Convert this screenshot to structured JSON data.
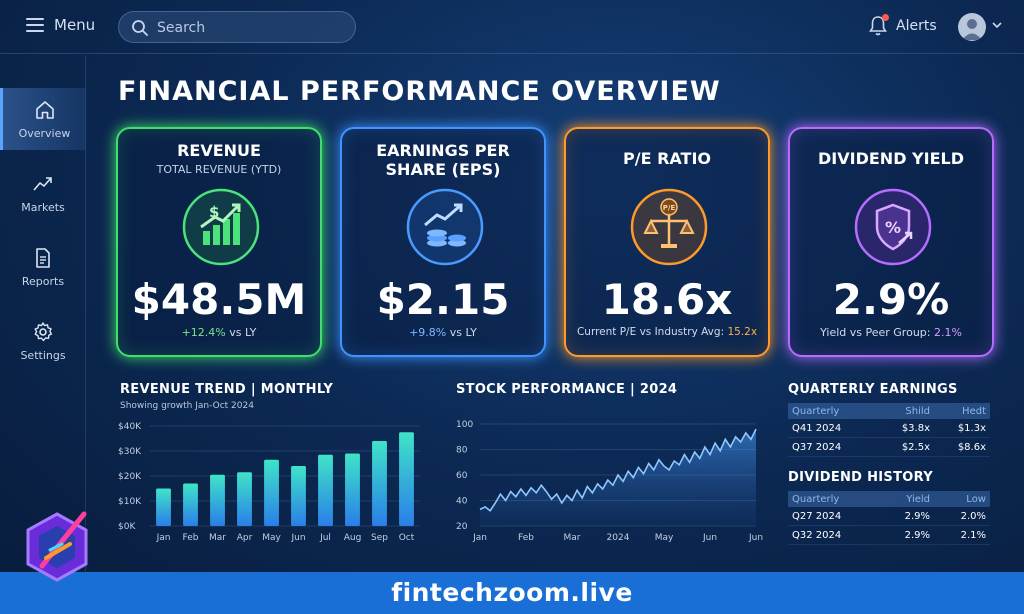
{
  "header": {
    "menu_label": "Menu",
    "search_placeholder": "Search",
    "alerts_label": "Alerts"
  },
  "sidebar": {
    "items": [
      {
        "label": "Overview",
        "icon": "home-icon",
        "active": true
      },
      {
        "label": "Markets",
        "icon": "trend-icon"
      },
      {
        "label": "Reports",
        "icon": "document-icon"
      },
      {
        "label": "Settings",
        "icon": "gear-icon"
      }
    ]
  },
  "page_title": "FINANCIAL PERFORMANCE OVERVIEW",
  "kpis": {
    "revenue": {
      "title": "REVENUE",
      "subtitle": "TOTAL REVENUE (YTD)",
      "value": "$48.5M",
      "change": "+12.4%",
      "note": " vs LY",
      "color": "#3fe06a",
      "icon": "revenue-chart-icon"
    },
    "eps": {
      "title_line1": "EARNINGS PER",
      "title_line2": "SHARE (EPS)",
      "value": "$2.15",
      "change": "+9.8%",
      "note": " vs LY",
      "color": "#3f94ff",
      "icon": "coins-growth-icon"
    },
    "pe": {
      "title": "P/E RATIO",
      "value": "18.6x",
      "note": "Current P/E vs Industry Avg: ",
      "highlight": "15.2x",
      "color": "#ff9a2a",
      "icon": "scale-icon",
      "badge": "P/E"
    },
    "dividend": {
      "title": "DIVIDEND YIELD",
      "value": "2.9%",
      "note": "Yield vs Peer Group: ",
      "highlight": "2.1%",
      "color": "#b56cff",
      "icon": "shield-percent-icon"
    }
  },
  "revenue_trend": {
    "title": "REVENUE TREND | MONTHLY",
    "subtitle": "Showing growth Jan-Oct 2024"
  },
  "stock_performance": {
    "title": "STOCK PERFORMANCE | 2024"
  },
  "chart_data": [
    {
      "type": "bar",
      "title": "REVENUE TREND | MONTHLY",
      "subtitle": "Showing growth Jan-Oct 2024",
      "categories": [
        "Jan",
        "Feb",
        "Mar",
        "Apr",
        "May",
        "Jun",
        "Jul",
        "Aug",
        "Sep",
        "Oct"
      ],
      "values": [
        15000,
        17000,
        20500,
        21500,
        26500,
        24000,
        28500,
        29000,
        34000,
        37500
      ],
      "yticks": [
        "$0K",
        "$10K",
        "$20K",
        "$30K",
        "$40K"
      ],
      "ylim": [
        0,
        40000
      ],
      "grid": true
    },
    {
      "type": "area",
      "title": "STOCK PERFORMANCE | 2024",
      "x_ticks": [
        "Jan",
        "Feb",
        "Mar",
        "2024",
        "May",
        "Jun",
        "Jun"
      ],
      "yticks": [
        "20",
        "40",
        "60",
        "80",
        "100"
      ],
      "ylim": [
        20,
        100
      ],
      "values": [
        33,
        35,
        32,
        38,
        45,
        40,
        47,
        43,
        49,
        44,
        50,
        46,
        52,
        47,
        41,
        45,
        38,
        44,
        40,
        48,
        42,
        51,
        46,
        53,
        49,
        56,
        52,
        60,
        55,
        63,
        58,
        66,
        61,
        69,
        64,
        72,
        67,
        64,
        71,
        68,
        76,
        70,
        78,
        73,
        82,
        76,
        85,
        79,
        88,
        82,
        90,
        86,
        93,
        88,
        96
      ],
      "grid": true
    }
  ],
  "quarterly_earnings": {
    "title": "QUARTERLY EARNINGS",
    "headers": [
      "Quarterly",
      "Shild",
      "Hedt"
    ],
    "rows": [
      [
        "Q41 2024",
        "$3.8x",
        "$1.3x"
      ],
      [
        "Q37 2024",
        "$2.5x",
        "$8.6x"
      ]
    ]
  },
  "dividend_history": {
    "title": "DIVIDEND HISTORY",
    "headers": [
      "Quarterly",
      "Yield",
      "Low"
    ],
    "rows": [
      [
        "Q27 2024",
        "2.9%",
        "2.0%"
      ],
      [
        "Q32 2024",
        "2.9%",
        "2.1%"
      ]
    ]
  },
  "footer": {
    "text": "fintechzoom.live"
  }
}
